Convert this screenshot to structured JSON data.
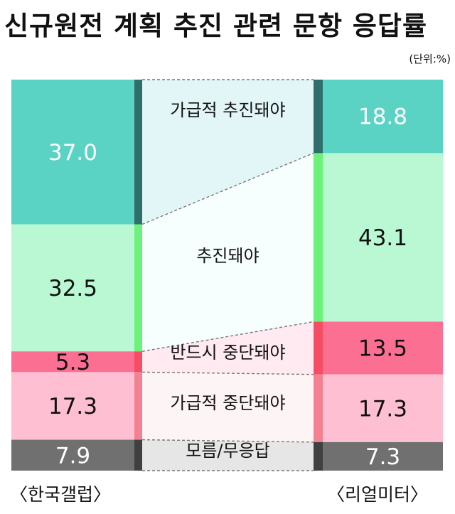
{
  "title": "신규원전 계획 추진 관련 문항 응답률",
  "unit": "(단위:%)",
  "chart_data": {
    "type": "bar",
    "subtype": "100% stacked bar comparison",
    "categories": [
      "가급적 추진돼야",
      "추진돼야",
      "반드시 중단돼야",
      "가급적 중단돼야",
      "모름/무응답"
    ],
    "series": [
      {
        "name": "〈한국갤럽〉",
        "values": [
          37.0,
          32.5,
          5.3,
          17.3,
          7.9
        ]
      },
      {
        "name": "〈리얼미터〉",
        "values": [
          18.8,
          43.1,
          13.5,
          17.3,
          7.3
        ]
      }
    ],
    "value_labels": {
      "left": [
        "37.0",
        "32.5",
        "5.3",
        "17.3",
        "7.9"
      ],
      "right": [
        "18.8",
        "43.1",
        "13.5",
        "17.3",
        "7.3"
      ]
    },
    "colors": {
      "fill": [
        "#5ad3c4",
        "#b9f8d3",
        "#fb6f93",
        "#ffbfd2",
        "#707070"
      ],
      "stripe": [
        "#2f6e6a",
        "#6cf27a",
        "#f64d66",
        "#f28292",
        "#404040"
      ],
      "band": [
        "#e2f6f7",
        "#f7fefe",
        "#feeaf0",
        "#fdf4f6",
        "#e6e6e6"
      ],
      "label": [
        "#ffffff",
        "#111111",
        "#111111",
        "#111111",
        "#ffffff"
      ]
    }
  }
}
